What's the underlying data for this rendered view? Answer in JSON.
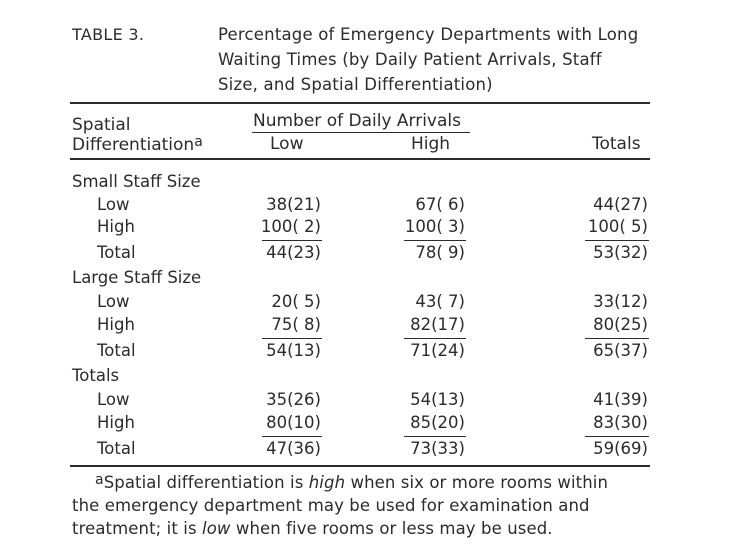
{
  "table": {
    "label": "TABLE 3.",
    "title_lines": [
      "Percentage of Emergency Departments with Long",
      "Waiting Times (by Daily Patient Arrivals, Staff",
      "Size, and Spatial Differentiation)"
    ],
    "header": {
      "row_header_line1": "Spatial",
      "row_header_line2": "Differentiation",
      "row_header_sup": "a",
      "group_header": "Number of Daily Arrivals",
      "col_low": "Low",
      "col_high": "High",
      "col_totals": "Totals"
    },
    "sections": [
      {
        "name": "Small Staff Size",
        "rows": [
          {
            "label": "Low",
            "low": "38(21)",
            "high": "67( 6)",
            "totals": "44(27)"
          },
          {
            "label": "High",
            "low": "100( 2)",
            "high": "100( 3)",
            "totals": "100( 5)"
          },
          {
            "label": "Total",
            "low": "44(23)",
            "high": "78( 9)",
            "totals": "53(32)"
          }
        ]
      },
      {
        "name": "Large Staff Size",
        "rows": [
          {
            "label": "Low",
            "low": "20( 5)",
            "high": "43( 7)",
            "totals": "33(12)"
          },
          {
            "label": "High",
            "low": "75( 8)",
            "high": "82(17)",
            "totals": "80(25)"
          },
          {
            "label": "Total",
            "low": "54(13)",
            "high": "71(24)",
            "totals": "65(37)"
          }
        ]
      },
      {
        "name": "Totals",
        "rows": [
          {
            "label": "Low",
            "low": "35(26)",
            "high": "54(13)",
            "totals": "41(39)"
          },
          {
            "label": "High",
            "low": "80(10)",
            "high": "85(20)",
            "totals": "83(30)"
          },
          {
            "label": "Total",
            "low": "47(36)",
            "high": "73(33)",
            "totals": "59(69)"
          }
        ]
      }
    ],
    "footnote": {
      "marker": "a",
      "line1_a": "Spatial differentiation is ",
      "line1_em": "high",
      "line1_b": " when six or more rooms within",
      "line2": "the emergency department may be used for examination and",
      "line3_a": "treatment; it is ",
      "line3_em": "low",
      "line3_b": " when five rooms or less may be used."
    }
  }
}
